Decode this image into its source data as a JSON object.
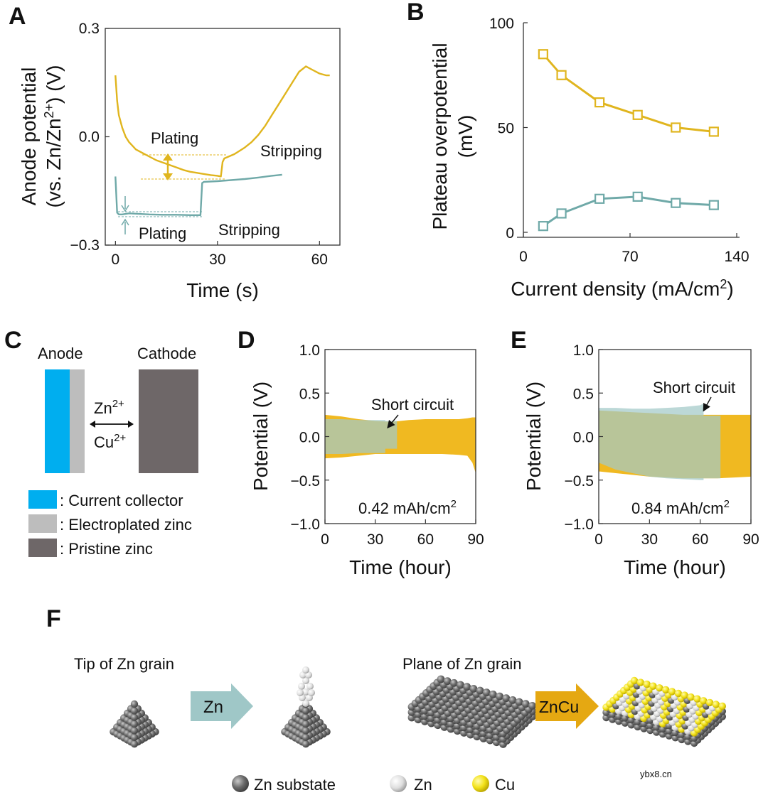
{
  "panels": {
    "a": "A",
    "b": "B",
    "c": "C",
    "d": "D",
    "e": "E",
    "f": "F"
  },
  "colors": {
    "gold": "#E0B51E",
    "teal": "#6FA9A8",
    "gold_fill": "#EFB515",
    "teal_fill": "#A2C9C8",
    "overlap_fill": "#B6C792",
    "collector": "#00AEEF",
    "electro": "#BDBDBD",
    "pristine": "#6E6768"
  },
  "chart_data": [
    {
      "id": "A",
      "type": "line",
      "xlabel": "Time (s)",
      "ylabel_line1": "Anode potential",
      "ylabel_line2": "(vs. Zn/Zn2+) (V)",
      "ylabel_line2_pre": "(vs. Zn/Zn",
      "ylabel_line2_sup": "2+",
      "ylabel_line2_post": ") (V)",
      "xlim": [
        -3,
        66
      ],
      "ylim": [
        -0.3,
        0.3
      ],
      "xticks": [
        0,
        30,
        60
      ],
      "xtick_labels": [
        "0",
        "30",
        "60"
      ],
      "yticks": [
        -0.3,
        0.0,
        0.3
      ],
      "ytick_labels": [
        "−0.3",
        "0.0",
        "0.3"
      ],
      "series": [
        {
          "name": "gold",
          "x": [
            0,
            0.5,
            1,
            2,
            3,
            4,
            5,
            6,
            8,
            10,
            12,
            15,
            18,
            20,
            22,
            24,
            26,
            28,
            30,
            31,
            31.5,
            32,
            35,
            38,
            40,
            42,
            44,
            46,
            48,
            50,
            52,
            54,
            56,
            58,
            60,
            62,
            63
          ],
          "y": [
            0.17,
            0.1,
            0.06,
            0.025,
            0.0,
            -0.015,
            -0.025,
            -0.035,
            -0.045,
            -0.055,
            -0.065,
            -0.075,
            -0.085,
            -0.092,
            -0.097,
            -0.1,
            -0.103,
            -0.106,
            -0.108,
            -0.11,
            -0.07,
            -0.06,
            -0.048,
            -0.03,
            -0.015,
            0.005,
            0.03,
            0.06,
            0.09,
            0.12,
            0.15,
            0.18,
            0.195,
            0.185,
            0.175,
            0.17,
            0.17
          ]
        },
        {
          "name": "teal",
          "x": [
            0,
            0.5,
            1,
            2,
            4,
            6,
            8,
            10,
            14,
            18,
            22,
            25,
            25.5,
            26,
            30,
            34,
            38,
            42,
            46,
            49
          ],
          "y": [
            -0.11,
            -0.21,
            -0.215,
            -0.215,
            -0.212,
            -0.213,
            -0.214,
            -0.215,
            -0.216,
            -0.216,
            -0.217,
            -0.217,
            -0.128,
            -0.125,
            -0.123,
            -0.12,
            -0.117,
            -0.113,
            -0.108,
            -0.105
          ]
        }
      ],
      "annotations": {
        "plating_gold": "Plating",
        "stripping_gold": "Stripping",
        "plating_teal": "Plating",
        "stripping_teal": "Stripping"
      }
    },
    {
      "id": "B",
      "type": "line",
      "xlabel": "Current density (mA/cm2)",
      "xlabel_pre": "Current density (mA/cm",
      "xlabel_sup": "2",
      "xlabel_post": ")",
      "ylabel_line1": "Plateau overpotential",
      "ylabel_line2": "(mV)",
      "xlim": [
        0,
        140
      ],
      "ylim": [
        0,
        100
      ],
      "xticks": [
        0,
        70,
        140
      ],
      "xtick_labels": [
        "0",
        "70",
        "140"
      ],
      "yticks": [
        0,
        50,
        100
      ],
      "ytick_labels": [
        "0",
        "50",
        "100"
      ],
      "series": [
        {
          "name": "gold",
          "x": [
            13,
            25,
            50,
            75,
            100,
            125
          ],
          "y": [
            85,
            75,
            62,
            56,
            50,
            48
          ]
        },
        {
          "name": "teal",
          "x": [
            13,
            25,
            50,
            75,
            100,
            125
          ],
          "y": [
            3,
            9,
            16,
            17,
            14,
            13
          ]
        }
      ]
    },
    {
      "id": "D",
      "type": "area",
      "xlabel": "Time (hour)",
      "ylabel": "Potential (V)",
      "xlim": [
        0,
        90
      ],
      "ylim": [
        -1.0,
        1.0
      ],
      "xticks": [
        0,
        30,
        60,
        90
      ],
      "xtick_labels": [
        "0",
        "30",
        "60",
        "90"
      ],
      "yticks": [
        1.0,
        0.5,
        0.0,
        -0.5,
        -1.0
      ],
      "ytick_labels": [
        "1.0",
        "0.5",
        "0.0",
        "−0.5",
        "−1.0"
      ],
      "annotation": "Short circuit",
      "capacity": "0.42 mAh/cm2",
      "capacity_pre": "0.42 mAh/cm",
      "capacity_sup": "2",
      "gold_band": {
        "x": [
          0,
          10,
          20,
          30,
          40,
          50,
          60,
          70,
          80,
          85,
          88,
          90
        ],
        "upper": [
          0.25,
          0.23,
          0.2,
          0.18,
          0.17,
          0.19,
          0.2,
          0.2,
          0.2,
          0.21,
          0.22,
          0.22
        ],
        "lower": [
          -0.25,
          -0.24,
          -0.22,
          -0.2,
          -0.2,
          -0.2,
          -0.2,
          -0.2,
          -0.21,
          -0.22,
          -0.3,
          -0.42
        ]
      },
      "teal_band": {
        "x": [
          0,
          10,
          20,
          30,
          36,
          36,
          43,
          43
        ],
        "upper": [
          0.2,
          0.2,
          0.19,
          0.19,
          0.19,
          0.18,
          0.18,
          0.07
        ],
        "lower": [
          -0.2,
          -0.2,
          -0.19,
          -0.19,
          -0.19,
          -0.14,
          -0.14,
          -0.07
        ]
      }
    },
    {
      "id": "E",
      "type": "area",
      "xlabel": "Time (hour)",
      "ylabel": "Potential (V)",
      "xlim": [
        0,
        90
      ],
      "ylim": [
        -1.0,
        1.0
      ],
      "xticks": [
        0,
        30,
        60,
        90
      ],
      "xtick_labels": [
        "0",
        "30",
        "60",
        "90"
      ],
      "yticks": [
        1.0,
        0.5,
        0.0,
        -0.5,
        -1.0
      ],
      "ytick_labels": [
        "1.0",
        "0.5",
        "0.0",
        "−0.5",
        "−1.0"
      ],
      "annotation": "Short circuit",
      "capacity": "0.84 mAh/cm2",
      "capacity_pre": "0.84 mAh/cm",
      "capacity_sup": "2",
      "gold_band": {
        "x": [
          0,
          10,
          20,
          30,
          40,
          50,
          62,
          70,
          80,
          90
        ],
        "upper": [
          0.3,
          0.29,
          0.28,
          0.27,
          0.26,
          0.25,
          0.25,
          0.25,
          0.25,
          0.25
        ],
        "lower": [
          -0.4,
          -0.42,
          -0.44,
          -0.46,
          -0.47,
          -0.48,
          -0.48,
          -0.48,
          -0.47,
          -0.46
        ]
      },
      "teal_band": {
        "x": [
          0,
          10,
          20,
          30,
          40,
          50,
          60,
          62,
          62,
          72,
          72
        ],
        "upper": [
          0.33,
          0.33,
          0.32,
          0.32,
          0.33,
          0.34,
          0.36,
          0.38,
          0.24,
          0.24,
          0.22
        ],
        "lower": [
          -0.3,
          -0.38,
          -0.42,
          -0.46,
          -0.48,
          -0.49,
          -0.5,
          -0.5,
          -0.48,
          -0.48,
          -0.46
        ]
      }
    }
  ],
  "panel_c": {
    "anode": "Anode",
    "cathode": "Cathode",
    "ion1_pre": "Zn",
    "ion1_sup": "2+",
    "ion2_pre": "Cu",
    "ion2_sup": "2+",
    "legend": [
      ": Current collector",
      ": Electroplated zinc",
      ": Pristine zinc"
    ]
  },
  "panel_f": {
    "tip_label": "Tip of Zn grain",
    "plane_label": "Plane of Zn grain",
    "arrow1": "Zn",
    "arrow2": "ZnCu",
    "legend": [
      "Zn substate",
      "Zn",
      "Cu"
    ],
    "watermark": "ybx8.cn"
  }
}
